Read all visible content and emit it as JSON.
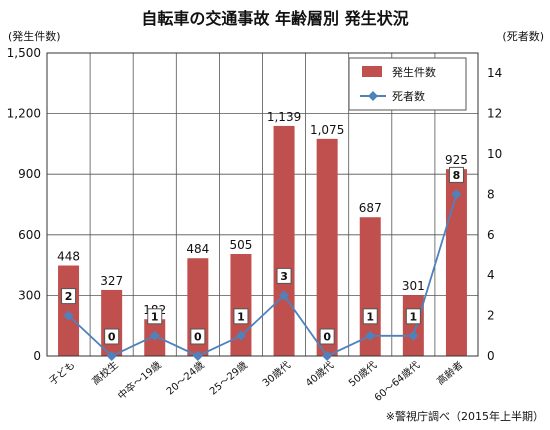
{
  "chart_data": {
    "type": "bar",
    "title": "自転車の交通事故 年齢層別 発生状況",
    "ylabel_left": "(発生件数)",
    "ylabel_right": "(死者数)",
    "categories": [
      "子ども",
      "高校生",
      "中卒～19歳",
      "20～24歳",
      "25～29歳",
      "30歳代",
      "40歳代",
      "50歳代",
      "60～64歳代",
      "高齢者"
    ],
    "series": [
      {
        "name": "発生件数",
        "type": "bar",
        "axis": "left",
        "color": "#c0504d",
        "values": [
          448,
          327,
          182,
          484,
          505,
          1139,
          1075,
          687,
          301,
          925
        ],
        "labels": [
          "448",
          "327",
          "182",
          "484",
          "505",
          "1,139",
          "1,075",
          "687",
          "301",
          "925"
        ]
      },
      {
        "name": "死者数",
        "type": "line",
        "axis": "right",
        "color": "#4f81bd",
        "values": [
          2,
          0,
          1,
          0,
          1,
          3,
          0,
          1,
          1,
          8
        ],
        "labels": [
          "2",
          "0",
          "1",
          "0",
          "1",
          "3",
          "0",
          "1",
          "1",
          "8"
        ]
      }
    ],
    "y_left": {
      "min": 0,
      "max": 1500,
      "ticks": [
        0,
        300,
        600,
        900,
        1200,
        1500
      ],
      "tick_labels": [
        "0",
        "300",
        "600",
        "900",
        "1,200",
        "1,500"
      ]
    },
    "y_right": {
      "min": 0,
      "max": 15,
      "ticks": [
        0,
        2,
        4,
        6,
        8,
        10,
        12,
        14
      ],
      "tick_labels": [
        "0",
        "2",
        "4",
        "6",
        "8",
        "10",
        "12",
        "14"
      ]
    },
    "grid": true,
    "legend_position": "top-right"
  },
  "legend": {
    "bar_label": "発生件数",
    "line_label": "死者数"
  },
  "footnote": "※警視庁調べ（2015年上半期）"
}
